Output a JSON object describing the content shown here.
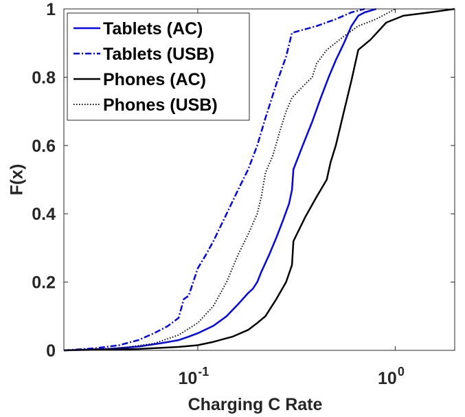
{
  "chart_data": {
    "type": "line",
    "title": "",
    "xlabel": "Charging C Rate",
    "ylabel": "F(x)",
    "xscale": "log",
    "xlim": [
      0.021,
      2.0
    ],
    "ylim": [
      0,
      1
    ],
    "x_ticks": [
      {
        "value": 0.1,
        "base": "10",
        "exp": "-1"
      },
      {
        "value": 1.0,
        "base": "10",
        "exp": "0"
      }
    ],
    "y_ticks": [
      {
        "value": 0,
        "label": "0"
      },
      {
        "value": 0.2,
        "label": "0.2"
      },
      {
        "value": 0.4,
        "label": "0.4"
      },
      {
        "value": 0.6,
        "label": "0.6"
      },
      {
        "value": 0.8,
        "label": "0.8"
      },
      {
        "value": 1,
        "label": "1"
      }
    ],
    "grid": false,
    "legend_position": "top-left",
    "series": [
      {
        "name": "Tablets (AC)",
        "color": "#0000ff",
        "style": "solid",
        "points": [
          [
            0.021,
            0
          ],
          [
            0.035,
            0.004
          ],
          [
            0.05,
            0.011
          ],
          [
            0.065,
            0.021
          ],
          [
            0.08,
            0.03
          ],
          [
            0.09,
            0.04
          ],
          [
            0.1,
            0.05
          ],
          [
            0.12,
            0.072
          ],
          [
            0.14,
            0.1
          ],
          [
            0.16,
            0.135
          ],
          [
            0.18,
            0.168
          ],
          [
            0.19,
            0.18
          ],
          [
            0.2,
            0.2
          ],
          [
            0.21,
            0.23
          ],
          [
            0.23,
            0.28
          ],
          [
            0.25,
            0.33
          ],
          [
            0.27,
            0.38
          ],
          [
            0.29,
            0.43
          ],
          [
            0.3,
            0.47
          ],
          [
            0.305,
            0.53
          ],
          [
            0.34,
            0.6
          ],
          [
            0.38,
            0.67
          ],
          [
            0.42,
            0.74
          ],
          [
            0.46,
            0.8
          ],
          [
            0.5,
            0.85
          ],
          [
            0.55,
            0.9
          ],
          [
            0.6,
            0.95
          ],
          [
            0.65,
            0.98
          ],
          [
            0.7,
            0.99
          ],
          [
            0.8,
            1.0
          ]
        ]
      },
      {
        "name": "Tablets (USB)",
        "color": "#0000ff",
        "style": "dashdot",
        "points": [
          [
            0.021,
            0
          ],
          [
            0.03,
            0.006
          ],
          [
            0.04,
            0.015
          ],
          [
            0.05,
            0.03
          ],
          [
            0.06,
            0.05
          ],
          [
            0.07,
            0.07
          ],
          [
            0.08,
            0.095
          ],
          [
            0.085,
            0.15
          ],
          [
            0.09,
            0.16
          ],
          [
            0.1,
            0.24
          ],
          [
            0.11,
            0.28
          ],
          [
            0.12,
            0.32
          ],
          [
            0.14,
            0.4
          ],
          [
            0.16,
            0.47
          ],
          [
            0.18,
            0.53
          ],
          [
            0.2,
            0.6
          ],
          [
            0.22,
            0.68
          ],
          [
            0.25,
            0.78
          ],
          [
            0.28,
            0.86
          ],
          [
            0.3,
            0.93
          ],
          [
            0.4,
            0.95
          ],
          [
            0.5,
            0.97
          ],
          [
            0.6,
            0.99
          ],
          [
            0.7,
            1.0
          ]
        ]
      },
      {
        "name": "Phones (AC)",
        "color": "#000000",
        "style": "solid",
        "points": [
          [
            0.021,
            0
          ],
          [
            0.05,
            0.004
          ],
          [
            0.08,
            0.01
          ],
          [
            0.1,
            0.015
          ],
          [
            0.12,
            0.025
          ],
          [
            0.15,
            0.04
          ],
          [
            0.18,
            0.06
          ],
          [
            0.2,
            0.08
          ],
          [
            0.22,
            0.1
          ],
          [
            0.25,
            0.15
          ],
          [
            0.28,
            0.2
          ],
          [
            0.3,
            0.25
          ],
          [
            0.305,
            0.32
          ],
          [
            0.35,
            0.39
          ],
          [
            0.4,
            0.45
          ],
          [
            0.45,
            0.5
          ],
          [
            0.47,
            0.55
          ],
          [
            0.5,
            0.6
          ],
          [
            0.55,
            0.7
          ],
          [
            0.6,
            0.79
          ],
          [
            0.65,
            0.88
          ],
          [
            0.75,
            0.91
          ],
          [
            0.9,
            0.96
          ],
          [
            1.1,
            0.98
          ],
          [
            1.5,
            0.99
          ],
          [
            2.0,
            1.0
          ]
        ]
      },
      {
        "name": "Phones (USB)",
        "color": "#000000",
        "style": "dotted",
        "points": [
          [
            0.021,
            0
          ],
          [
            0.04,
            0.006
          ],
          [
            0.06,
            0.02
          ],
          [
            0.08,
            0.045
          ],
          [
            0.1,
            0.08
          ],
          [
            0.12,
            0.13
          ],
          [
            0.14,
            0.2
          ],
          [
            0.16,
            0.28
          ],
          [
            0.18,
            0.34
          ],
          [
            0.2,
            0.4
          ],
          [
            0.21,
            0.45
          ],
          [
            0.22,
            0.52
          ],
          [
            0.24,
            0.57
          ],
          [
            0.26,
            0.64
          ],
          [
            0.28,
            0.7
          ],
          [
            0.3,
            0.74
          ],
          [
            0.35,
            0.78
          ],
          [
            0.38,
            0.8
          ],
          [
            0.4,
            0.84
          ],
          [
            0.45,
            0.88
          ],
          [
            0.55,
            0.92
          ],
          [
            0.65,
            0.95
          ],
          [
            0.8,
            0.97
          ],
          [
            1.0,
            1.0
          ]
        ]
      }
    ]
  }
}
